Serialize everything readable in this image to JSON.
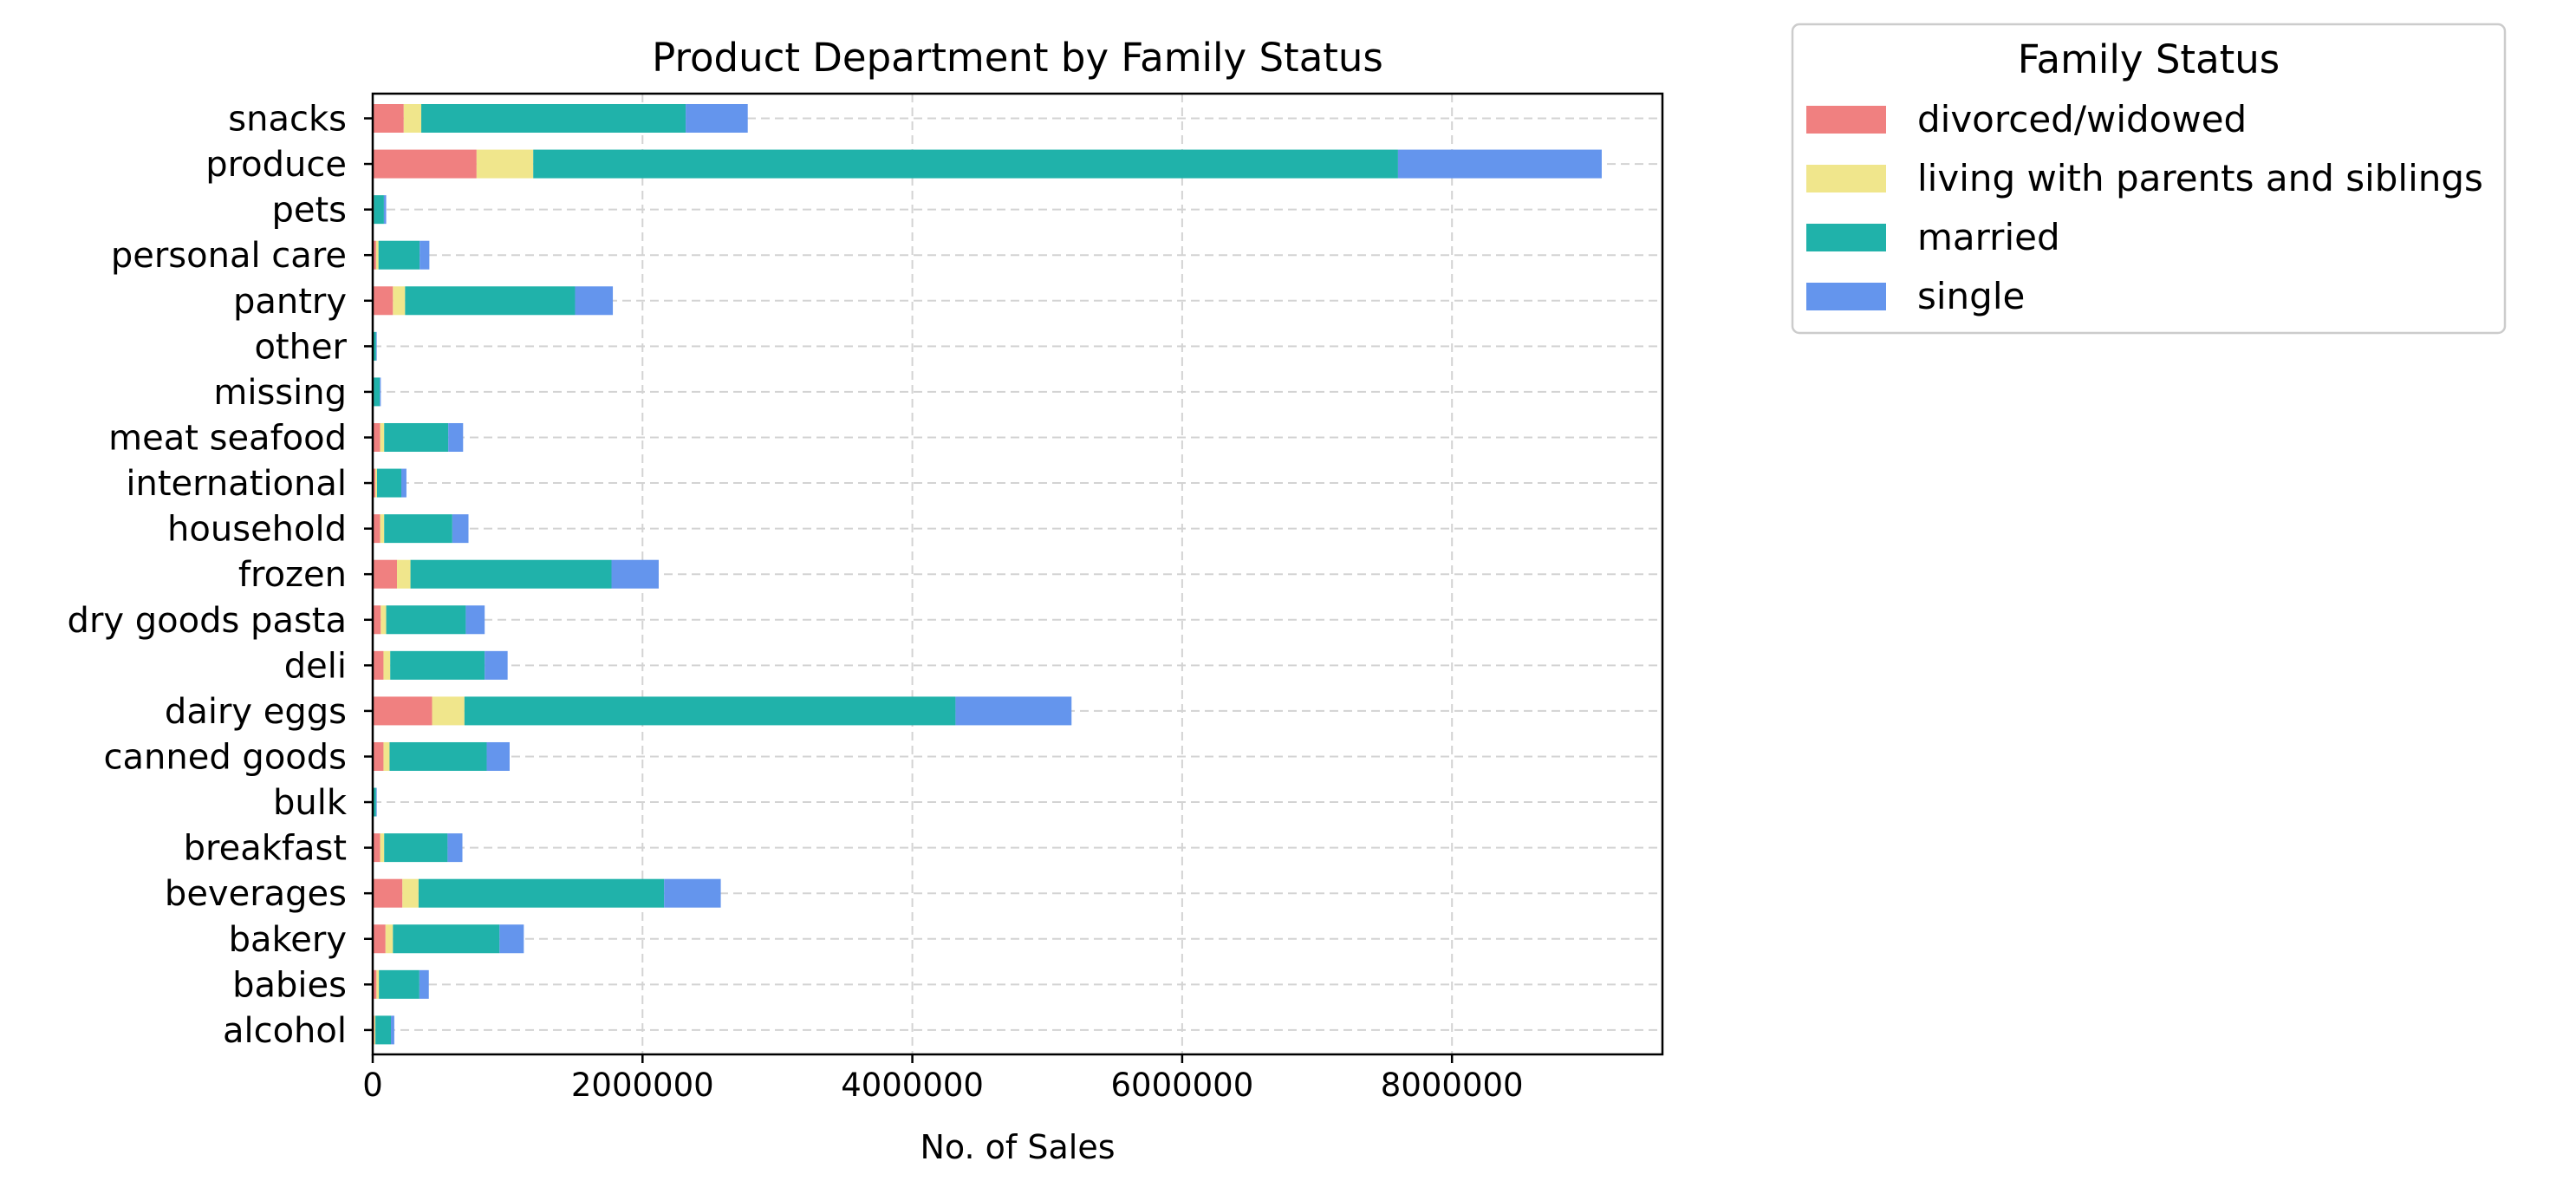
{
  "chart_data": {
    "type": "bar",
    "orientation": "horizontal",
    "stacked": true,
    "title": "Product Department by Family Status",
    "xlabel": "No. of Sales",
    "ylabel": "",
    "xlim": [
      0,
      9560000
    ],
    "xticks": [
      0,
      2000000,
      4000000,
      6000000,
      8000000
    ],
    "xtick_labels": [
      "0",
      "2000000",
      "4000000",
      "6000000",
      "8000000"
    ],
    "grid": true,
    "legend": {
      "title": "Family Status",
      "placement": "outside-top-right"
    },
    "categories": [
      "snacks",
      "produce",
      "pets",
      "personal care",
      "pantry",
      "other",
      "missing",
      "meat seafood",
      "international",
      "household",
      "frozen",
      "dry goods pasta",
      "deli",
      "dairy eggs",
      "canned goods",
      "bulk",
      "breakfast",
      "beverages",
      "bakery",
      "babies",
      "alcohol"
    ],
    "series": [
      {
        "name": "divorced/widowed",
        "color": "#f08080",
        "values": [
          230000,
          770000,
          5000,
          25000,
          150000,
          3000,
          4000,
          55000,
          20000,
          55000,
          180000,
          60000,
          80000,
          440000,
          80000,
          3000,
          55000,
          220000,
          95000,
          28000,
          12000
        ]
      },
      {
        "name": "living with parents and siblings",
        "color": "#f0e68c",
        "values": [
          130000,
          420000,
          3000,
          18000,
          90000,
          2000,
          3000,
          30000,
          12000,
          30000,
          100000,
          40000,
          50000,
          240000,
          45000,
          2000,
          30000,
          120000,
          55000,
          18000,
          8000
        ]
      },
      {
        "name": "married",
        "color": "#20b2aa",
        "values": [
          1960000,
          6410000,
          75000,
          305000,
          1260000,
          20000,
          45000,
          475000,
          180000,
          505000,
          1490000,
          590000,
          700000,
          3640000,
          720000,
          20000,
          470000,
          1820000,
          790000,
          300000,
          115000
        ]
      },
      {
        "name": "single",
        "color": "#6495ed",
        "values": [
          460000,
          1510000,
          17000,
          72000,
          280000,
          5000,
          8000,
          110000,
          38000,
          120000,
          350000,
          140000,
          170000,
          860000,
          170000,
          5000,
          110000,
          420000,
          180000,
          70000,
          25000
        ]
      }
    ]
  }
}
